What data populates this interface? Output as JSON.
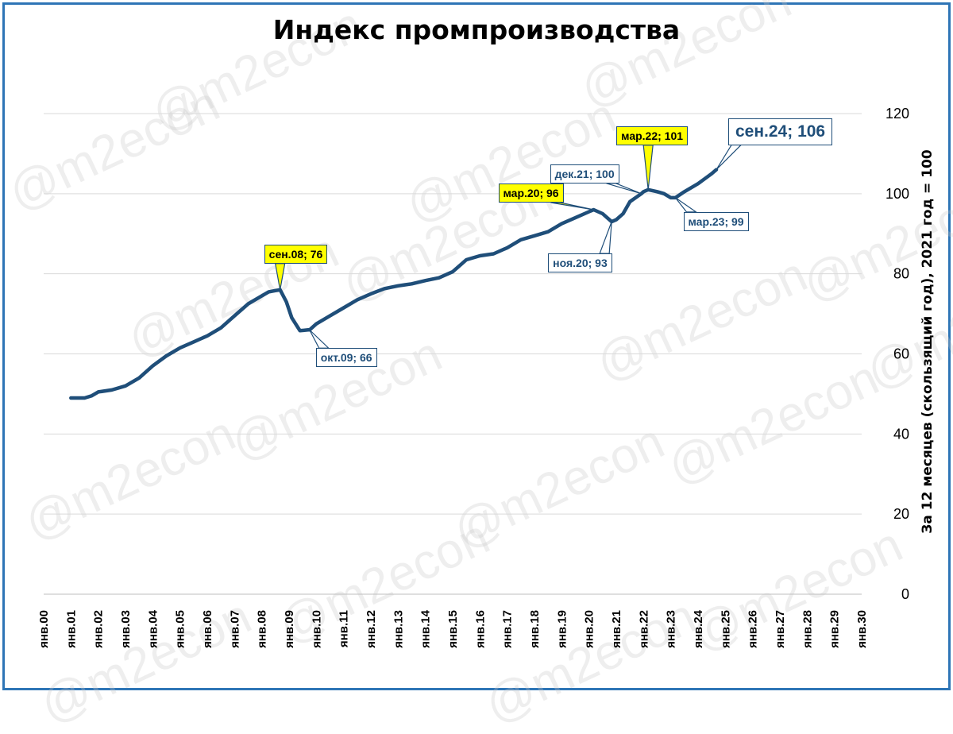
{
  "chart_data": {
    "type": "line",
    "title": "Индекс промпроизводства",
    "ylabel": "За 12 месяцев (скользящий год), 2021 год = 100",
    "xlabel": "",
    "ylim": [
      0,
      120
    ],
    "yticks": [
      "0",
      "20",
      "40",
      "60",
      "80",
      "100",
      "120"
    ],
    "categories": [
      "янв.00",
      "янв.01",
      "янв.02",
      "янв.03",
      "янв.04",
      "янв.05",
      "янв.06",
      "янв.07",
      "янв.08",
      "янв.09",
      "янв.10",
      "янв.11",
      "янв.12",
      "янв.13",
      "янв.14",
      "янв.15",
      "янв.16",
      "янв.17",
      "янв.18",
      "янв.19",
      "янв.20",
      "янв.21",
      "янв.22",
      "янв.23",
      "янв.24",
      "янв.25",
      "янв.26",
      "янв.27",
      "янв.28",
      "янв.29",
      "янв.30"
    ],
    "grid": true,
    "y_axis_side": "right",
    "series": [
      {
        "color": "#1f4e79",
        "x": [
          2001.0,
          2001.25,
          2001.5,
          2001.75,
          2002.0,
          2002.5,
          2003.0,
          2003.5,
          2004.0,
          2004.5,
          2005.0,
          2005.5,
          2006.0,
          2006.5,
          2007.0,
          2007.5,
          2008.0,
          2008.25,
          2008.5,
          2008.67,
          2008.9,
          2009.1,
          2009.4,
          2009.7,
          2009.75,
          2010.0,
          2010.5,
          2011.0,
          2011.5,
          2012.0,
          2012.5,
          2013.0,
          2013.5,
          2014.0,
          2014.5,
          2015.0,
          2015.25,
          2015.5,
          2016.0,
          2016.5,
          2017.0,
          2017.5,
          2018.0,
          2018.5,
          2019.0,
          2019.5,
          2020.0,
          2020.17,
          2020.5,
          2020.83,
          2021.0,
          2021.25,
          2021.5,
          2021.92,
          2022.0,
          2022.17,
          2022.5,
          2022.75,
          2023.0,
          2023.17,
          2023.5,
          2024.0,
          2024.5,
          2024.67
        ],
        "values": [
          49,
          49,
          49,
          49.5,
          50.5,
          51,
          52,
          54,
          57,
          59.5,
          61.5,
          63,
          64.5,
          66.5,
          69.5,
          72.5,
          74.5,
          75.5,
          75.8,
          76,
          73,
          69,
          65.8,
          66,
          66,
          67.5,
          69.5,
          71.5,
          73.5,
          75,
          76.3,
          77,
          77.5,
          78.3,
          79,
          80.5,
          82,
          83.5,
          84.5,
          85,
          86.5,
          88.5,
          89.5,
          90.5,
          92.5,
          94,
          95.5,
          96,
          95,
          93,
          93.5,
          95,
          98,
          100,
          100.5,
          101,
          100.5,
          100,
          99,
          99,
          100.5,
          102.5,
          105,
          106
        ]
      }
    ],
    "annotations": [
      {
        "text": "сен.08; 76",
        "x": 2008.67,
        "y": 76,
        "highlight": true
      },
      {
        "text": "окт.09; 66",
        "x": 2009.75,
        "y": 66,
        "highlight": false
      },
      {
        "text": "мар.20; 96",
        "x": 2020.17,
        "y": 96,
        "highlight": true
      },
      {
        "text": "ноя.20; 93",
        "x": 2020.83,
        "y": 93,
        "highlight": false
      },
      {
        "text": "дек.21; 100",
        "x": 2021.92,
        "y": 100,
        "highlight": false
      },
      {
        "text": "мар.22; 101",
        "x": 2022.17,
        "y": 101,
        "highlight": true
      },
      {
        "text": "мар.23; 99",
        "x": 2023.17,
        "y": 99,
        "highlight": false
      },
      {
        "text": "сен.24; 106",
        "x": 2024.67,
        "y": 106,
        "highlight": false,
        "large": true
      }
    ]
  },
  "watermark": "@m2econ"
}
